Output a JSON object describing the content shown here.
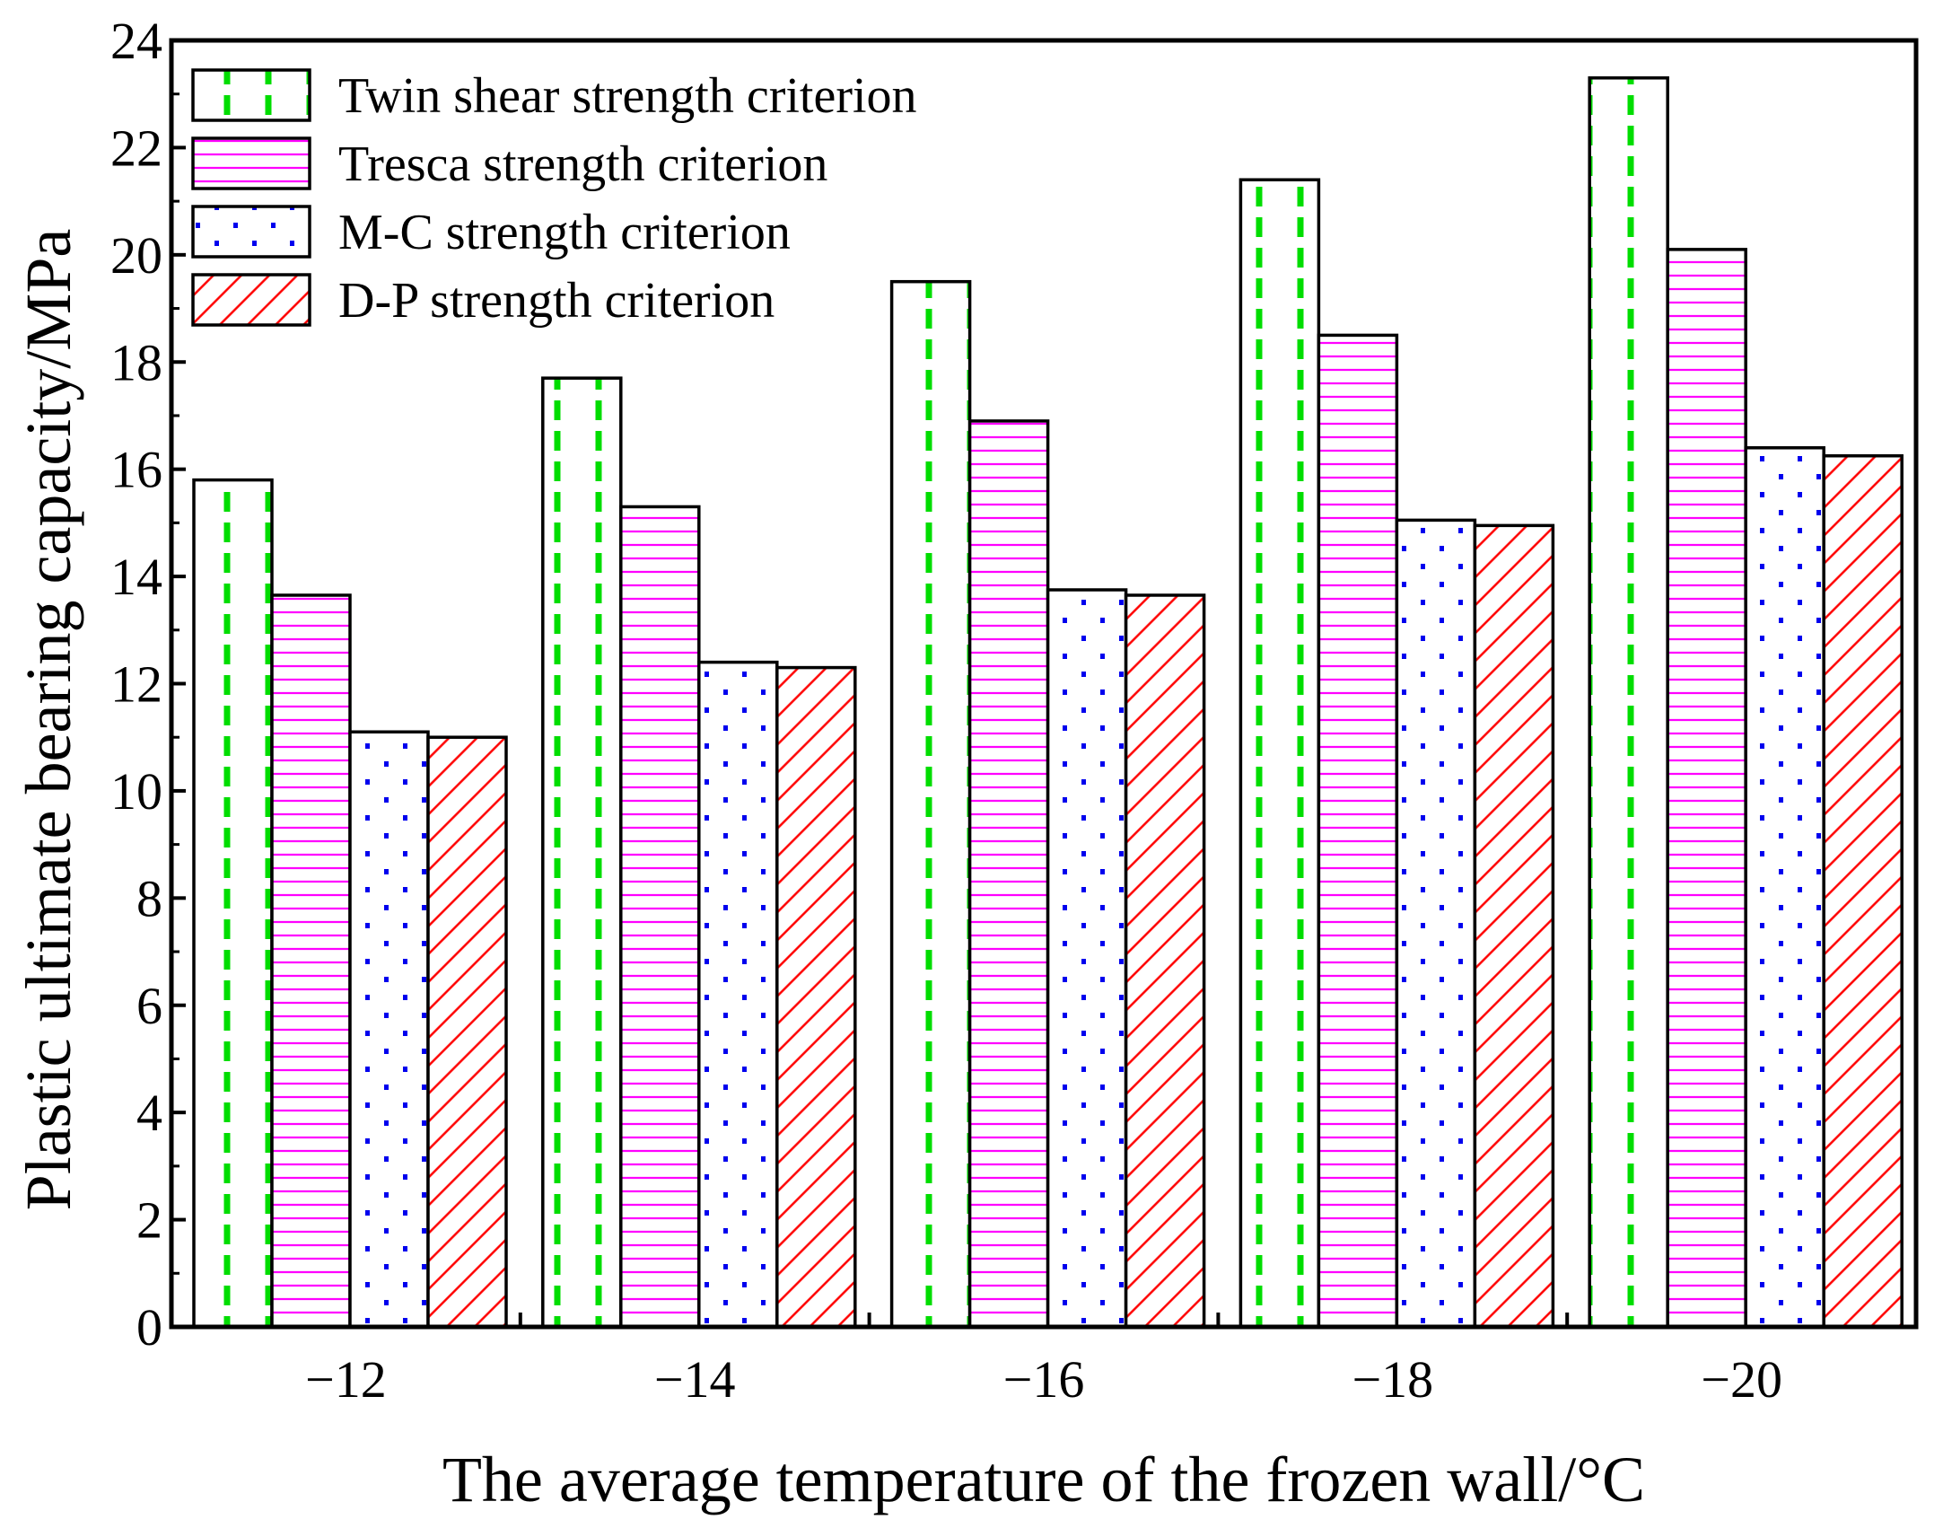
{
  "chart_data": {
    "type": "bar",
    "xlabel": "The average temperature of the frozen wall/°C",
    "ylabel": "Plastic ultimate bearing capacity/MPa",
    "categories": [
      "−12",
      "−14",
      "−16",
      "−18",
      "−20"
    ],
    "ylim": [
      0,
      24
    ],
    "yticks": [
      "0",
      "2",
      "4",
      "6",
      "8",
      "10",
      "12",
      "14",
      "16",
      "18",
      "20",
      "22",
      "24"
    ],
    "legend_position": "top-left",
    "series": [
      {
        "name": "Twin shear strength criterion",
        "values": [
          15.8,
          17.7,
          19.5,
          21.4,
          23.3
        ],
        "color": "#00dd00",
        "pattern": "vertical-dashes"
      },
      {
        "name": "Tresca strength criterion",
        "values": [
          13.65,
          15.3,
          16.9,
          18.5,
          20.1
        ],
        "color": "#ff00ff",
        "pattern": "horizontal-lines"
      },
      {
        "name": "M-C strength criterion",
        "values": [
          11.1,
          12.4,
          13.75,
          15.05,
          16.4
        ],
        "color": "#0000ee",
        "pattern": "dots"
      },
      {
        "name": "D-P strength criterion",
        "values": [
          11.0,
          12.3,
          13.65,
          14.95,
          16.25
        ],
        "color": "#ff0000",
        "pattern": "diagonal-hatch"
      }
    ]
  }
}
